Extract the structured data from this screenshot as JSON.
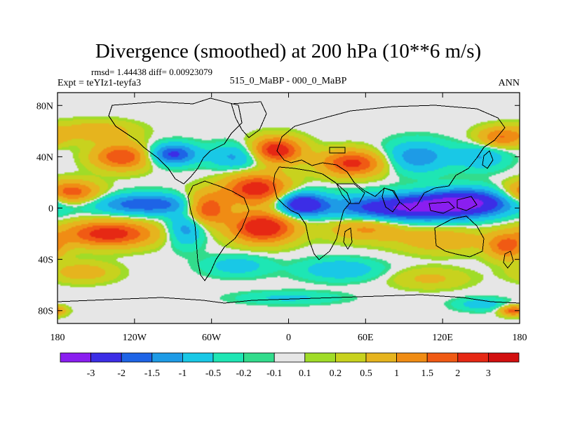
{
  "chart_data": {
    "type": "heatmap",
    "title": "Divergence (smoothed) at 200 hPa (10**6 m/s)",
    "stats_text": "rmsd= 1.44438 diff= 0.00923079",
    "left_label": "Expt = teYIz1-teyfa3",
    "center_label": "515_0_MaBP - 000_0_MaBP",
    "right_label": "ANN",
    "x_axis": {
      "range": [
        -180,
        180
      ],
      "ticks": [
        {
          "value": -180,
          "label": "180"
        },
        {
          "value": -120,
          "label": "120W"
        },
        {
          "value": -60,
          "label": "60W"
        },
        {
          "value": 0,
          "label": "0"
        },
        {
          "value": 60,
          "label": "60E"
        },
        {
          "value": 120,
          "label": "120E"
        },
        {
          "value": 180,
          "label": "180"
        }
      ]
    },
    "y_axis": {
      "range": [
        -90,
        90
      ],
      "ticks": [
        {
          "value": 80,
          "label": "80N"
        },
        {
          "value": 40,
          "label": "40N"
        },
        {
          "value": 0,
          "label": "0"
        },
        {
          "value": -40,
          "label": "40S"
        },
        {
          "value": -80,
          "label": "80S"
        }
      ]
    },
    "colorbar": {
      "levels": [
        "-3",
        "-2",
        "-1.5",
        "-1",
        "-0.5",
        "-0.2",
        "-0.1",
        "0.1",
        "0.2",
        "0.5",
        "1",
        "1.5",
        "2",
        "3"
      ],
      "colors": [
        "#8a1ef0",
        "#3c2de6",
        "#1e64e6",
        "#1e9be6",
        "#19c8e6",
        "#1ee6b4",
        "#32dc8c",
        "#e6e6e6",
        "#a0dc28",
        "#c8d21e",
        "#e6b41e",
        "#f08c14",
        "#f05a14",
        "#e62814",
        "#d20f0f"
      ]
    },
    "anomaly_centers": [
      {
        "lon": -90,
        "lat": 42,
        "value": -2.2,
        "rlon": 18,
        "rlat": 8
      },
      {
        "lon": -40,
        "lat": 40,
        "value": -1.2,
        "rlon": 22,
        "rlat": 10
      },
      {
        "lon": -130,
        "lat": 40,
        "value": 2.0,
        "rlon": 22,
        "rlat": 10
      },
      {
        "lon": -10,
        "lat": 45,
        "value": 2.6,
        "rlon": 20,
        "rlat": 10
      },
      {
        "lon": 50,
        "lat": 35,
        "value": 2.2,
        "rlon": 25,
        "rlat": 10
      },
      {
        "lon": 100,
        "lat": 40,
        "value": -1.4,
        "rlon": 25,
        "rlat": 12
      },
      {
        "lon": 150,
        "lat": 40,
        "value": -1.0,
        "rlon": 20,
        "rlat": 10
      },
      {
        "lon": 165,
        "lat": 55,
        "value": 1.5,
        "rlon": 18,
        "rlat": 8
      },
      {
        "lon": -150,
        "lat": 60,
        "value": 0.9,
        "rlon": 30,
        "rlat": 8
      },
      {
        "lon": -170,
        "lat": 12,
        "value": 2.0,
        "rlon": 22,
        "rlat": 9
      },
      {
        "lon": -110,
        "lat": 3,
        "value": -2.0,
        "rlon": 40,
        "rlat": 8
      },
      {
        "lon": -65,
        "lat": 0,
        "value": 2.3,
        "rlon": 18,
        "rlat": 12
      },
      {
        "lon": -25,
        "lat": 15,
        "value": 2.4,
        "rlon": 25,
        "rlat": 12
      },
      {
        "lon": 10,
        "lat": 3,
        "value": -2.8,
        "rlon": 18,
        "rlat": 9
      },
      {
        "lon": 90,
        "lat": 0,
        "value": -3.0,
        "rlon": 55,
        "rlat": 10
      },
      {
        "lon": 140,
        "lat": 5,
        "value": -2.6,
        "rlon": 35,
        "rlat": 10
      },
      {
        "lon": -140,
        "lat": -20,
        "value": 2.4,
        "rlon": 35,
        "rlat": 10
      },
      {
        "lon": -80,
        "lat": -15,
        "value": -1.4,
        "rlon": 14,
        "rlat": 14
      },
      {
        "lon": -20,
        "lat": -15,
        "value": 2.7,
        "rlon": 25,
        "rlat": 12
      },
      {
        "lon": 60,
        "lat": -15,
        "value": 1.2,
        "rlon": 30,
        "rlat": 10
      },
      {
        "lon": 120,
        "lat": -25,
        "value": 0.9,
        "rlon": 35,
        "rlat": 10
      },
      {
        "lon": 170,
        "lat": -30,
        "value": 1.6,
        "rlon": 15,
        "rlat": 10
      },
      {
        "lon": -160,
        "lat": -50,
        "value": 0.8,
        "rlon": 25,
        "rlat": 8
      },
      {
        "lon": -40,
        "lat": -45,
        "value": -0.8,
        "rlon": 25,
        "rlat": 8
      },
      {
        "lon": 40,
        "lat": -48,
        "value": -1.0,
        "rlon": 30,
        "rlat": 8
      },
      {
        "lon": 110,
        "lat": -55,
        "value": 0.6,
        "rlon": 30,
        "rlat": 8
      },
      {
        "lon": 0,
        "lat": -70,
        "value": -0.6,
        "rlon": 40,
        "rlat": 5
      },
      {
        "lon": 175,
        "lat": -80,
        "value": 1.8,
        "rlon": 10,
        "rlat": 4
      },
      {
        "lon": 150,
        "lat": -75,
        "value": -0.8,
        "rlon": 20,
        "rlat": 5
      }
    ]
  }
}
